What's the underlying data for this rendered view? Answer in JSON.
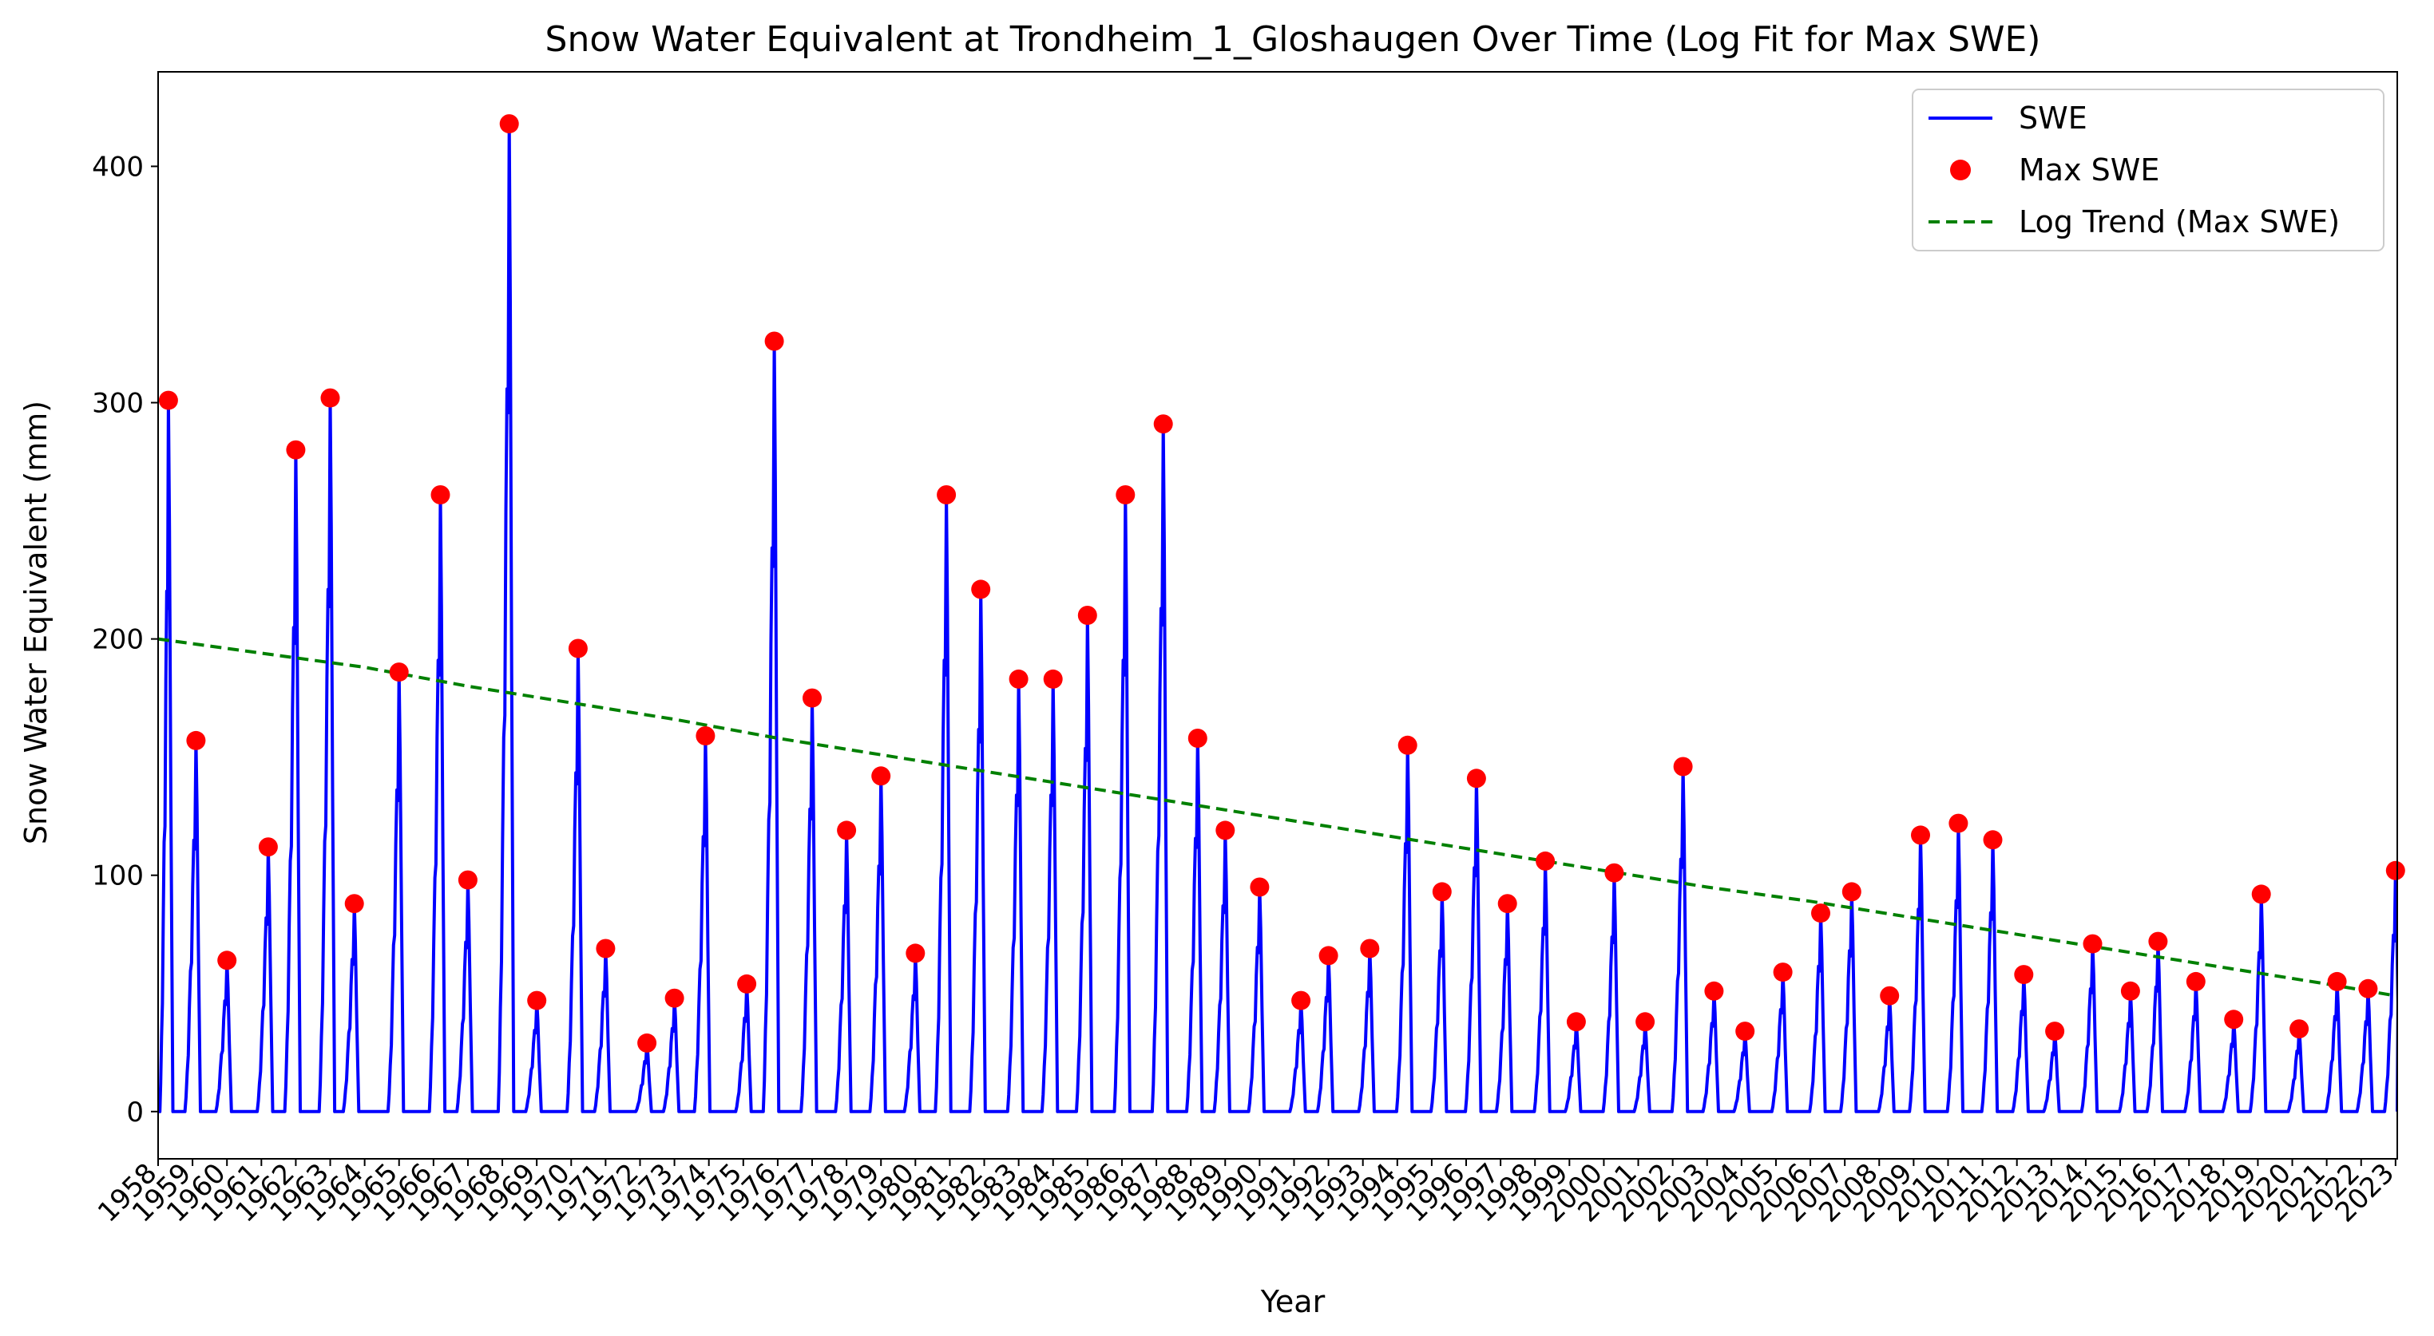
{
  "chart_data": {
    "type": "line",
    "title": "Snow Water Equivalent at Trondheim_1_Gloshaugen Over Time (Log Fit for Max SWE)",
    "xlabel": "Year",
    "ylabel": "Snow Water Equivalent (mm)",
    "xlim": [
      1958.0,
      2023.05
    ],
    "ylim": [
      -20,
      440
    ],
    "yticks": [
      0,
      100,
      200,
      300,
      400
    ],
    "xticks": [
      1958,
      1959,
      1960,
      1961,
      1962,
      1963,
      1964,
      1965,
      1966,
      1967,
      1968,
      1969,
      1970,
      1971,
      1972,
      1973,
      1974,
      1975,
      1976,
      1977,
      1978,
      1979,
      1980,
      1981,
      1982,
      1983,
      1984,
      1985,
      1986,
      1987,
      1988,
      1989,
      1990,
      1991,
      1992,
      1993,
      1994,
      1995,
      1996,
      1997,
      1998,
      1999,
      2000,
      2001,
      2002,
      2003,
      2004,
      2005,
      2006,
      2007,
      2008,
      2009,
      2010,
      2011,
      2012,
      2013,
      2014,
      2015,
      2016,
      2017,
      2018,
      2019,
      2020,
      2021,
      2022,
      2023
    ],
    "legend_position": "top-right",
    "grid": false,
    "colors": {
      "swe": "#0000ff",
      "max": "#ff0000",
      "trend": "#008000"
    },
    "series": [
      {
        "name": "Max SWE",
        "kind": "scatter",
        "x": [
          1958.3,
          1959.1,
          1960.0,
          1961.2,
          1962.0,
          1963.0,
          1963.7,
          1965.0,
          1966.2,
          1967.0,
          1968.2,
          1969.0,
          1970.2,
          1971.0,
          1972.2,
          1973.0,
          1973.9,
          1975.1,
          1975.9,
          1977.0,
          1978.0,
          1979.0,
          1980.0,
          1980.9,
          1981.9,
          1983.0,
          1984.0,
          1985.0,
          1986.1,
          1987.2,
          1988.2,
          1989.0,
          1990.0,
          1991.2,
          1992.0,
          1993.2,
          1994.3,
          1995.3,
          1996.3,
          1997.2,
          1998.3,
          1999.2,
          2000.3,
          2001.2,
          2002.3,
          2003.2,
          2004.1,
          2005.2,
          2006.3,
          2007.2,
          2008.3,
          2009.2,
          2010.3,
          2011.3,
          2012.2,
          2013.1,
          2014.2,
          2015.3,
          2016.1,
          2017.2,
          2018.3,
          2019.1,
          2020.2,
          2021.3,
          2022.2,
          2023.0
        ],
        "y": [
          301,
          157,
          64,
          112,
          280,
          302,
          88,
          186,
          261,
          98,
          418,
          47,
          196,
          69,
          29,
          48,
          159,
          54,
          326,
          175,
          119,
          142,
          67,
          261,
          221,
          183,
          183,
          210,
          261,
          291,
          158,
          119,
          95,
          47,
          66,
          69,
          155,
          93,
          141,
          88,
          106,
          38,
          101,
          38,
          146,
          51,
          34,
          59,
          84,
          93,
          49,
          117,
          122,
          115,
          58,
          34,
          71,
          51,
          72,
          55,
          39,
          92,
          35,
          55,
          52,
          102
        ]
      },
      {
        "name": "Log Trend (Max SWE)",
        "kind": "line",
        "x": [
          1958.0,
          1961.0,
          1964.0,
          1967.0,
          1970.0,
          1973.0,
          1976.0,
          1979.0,
          1982.0,
          1985.0,
          1988.0,
          1991.0,
          1994.0,
          1997.0,
          2000.0,
          2003.0,
          2006.0,
          2009.0,
          2012.0,
          2015.0,
          2018.0,
          2021.0,
          2023.0
        ],
        "y": [
          200,
          194,
          188,
          180,
          173,
          166,
          158,
          151,
          144,
          137,
          130,
          123,
          116,
          109,
          102,
          95,
          89,
          82,
          75,
          68,
          61,
          54,
          49
        ]
      },
      {
        "name": "SWE",
        "kind": "line"
      }
    ]
  },
  "legend": {
    "items": [
      {
        "label": "SWE"
      },
      {
        "label": "Max SWE"
      },
      {
        "label": "Log Trend (Max SWE)"
      }
    ]
  }
}
